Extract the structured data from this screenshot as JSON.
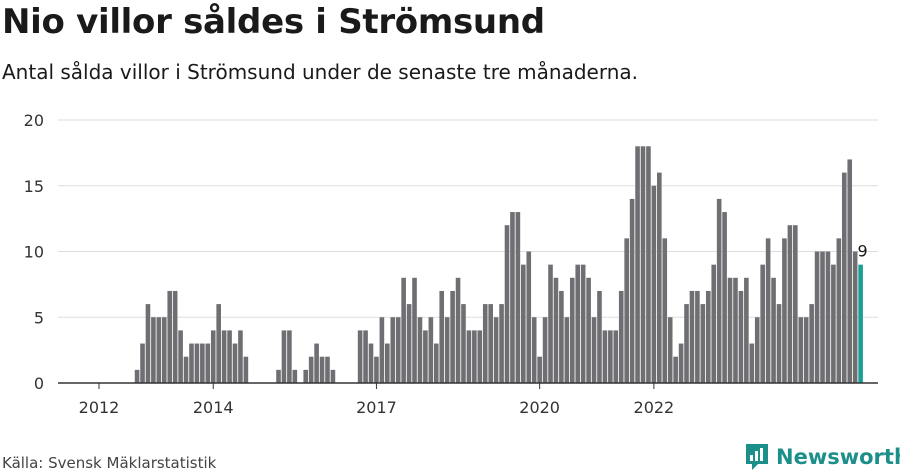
{
  "header": {
    "title": "Nio villor såldes i Strömsund",
    "subtitle": "Antal sålda villor i Strömsund under de senaste tre månaderna."
  },
  "footer": {
    "source": "Källa: Svensk Mäklarstatistik",
    "brand": "Newsworthy"
  },
  "colors": {
    "bar": "#6e6e73",
    "highlight": "#1a9e95",
    "grid": "#dddddd",
    "axis": "#333333",
    "brand": "#1d8f8a"
  },
  "chart_data": {
    "type": "bar",
    "title": "Nio villor såldes i Strömsund",
    "subtitle": "Antal sålda villor i Strömsund under de senaste tre månaderna.",
    "xlabel": "",
    "ylabel": "",
    "ylim": [
      0,
      20
    ],
    "yticks": [
      0,
      5,
      10,
      15,
      20
    ],
    "grid": true,
    "x_tick_labels": [
      {
        "label": "2012",
        "index": 0
      },
      {
        "label": "2014",
        "index": 21
      },
      {
        "label": "2017",
        "index": 51
      },
      {
        "label": "2020",
        "index": 81
      },
      {
        "label": "2022",
        "index": 102
      }
    ],
    "values": [
      0,
      0,
      0,
      0,
      0,
      0,
      0,
      1,
      3,
      6,
      5,
      5,
      5,
      7,
      7,
      4,
      2,
      3,
      3,
      3,
      3,
      4,
      6,
      4,
      4,
      3,
      4,
      2,
      0,
      0,
      0,
      0,
      0,
      1,
      4,
      4,
      1,
      0,
      1,
      2,
      3,
      2,
      2,
      1,
      0,
      0,
      0,
      0,
      4,
      4,
      3,
      2,
      5,
      3,
      5,
      5,
      8,
      6,
      8,
      5,
      4,
      5,
      3,
      7,
      5,
      7,
      8,
      6,
      4,
      4,
      4,
      6,
      6,
      5,
      6,
      12,
      13,
      13,
      9,
      10,
      5,
      2,
      5,
      9,
      8,
      7,
      5,
      8,
      9,
      9,
      8,
      5,
      7,
      4,
      4,
      4,
      7,
      11,
      14,
      18,
      18,
      18,
      15,
      16,
      11,
      5,
      2,
      3,
      6,
      7,
      7,
      6,
      7,
      9,
      14,
      13,
      8,
      8,
      7,
      8,
      3,
      5,
      9,
      11,
      8,
      6,
      11,
      12,
      12,
      5,
      5,
      6,
      10,
      10,
      10,
      9,
      11,
      16,
      17,
      10,
      9
    ],
    "highlight_last": true,
    "annotations": [
      {
        "index": -1,
        "text": "9"
      }
    ]
  }
}
